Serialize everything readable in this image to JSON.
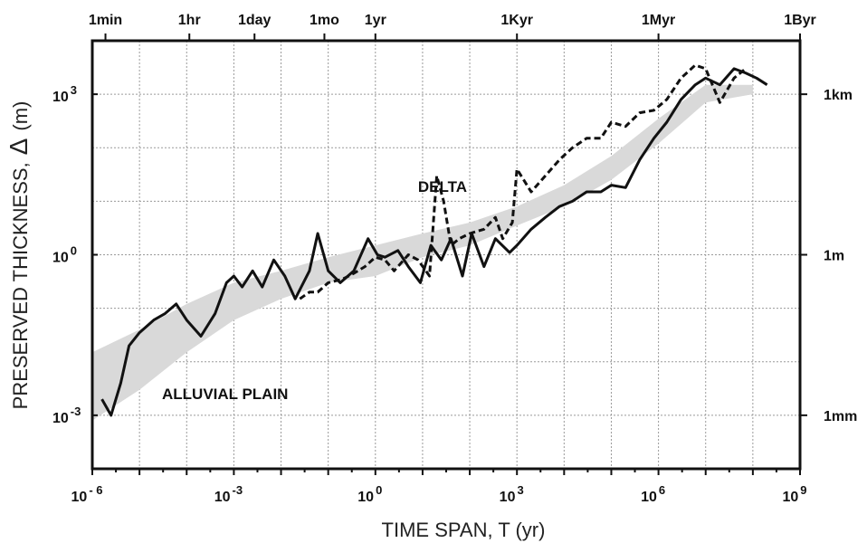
{
  "chart_data": {
    "type": "line",
    "xlabel": "TIME SPAN, T  (yr)",
    "ylabel": "PRESERVED  THICKNESS,",
    "ylabel_symbol": "Δ",
    "ylabel_unit": "(m)",
    "x_scale": "log",
    "y_scale": "log",
    "xlim": [
      1e-06,
      1000000000.0
    ],
    "ylim": [
      0.0001,
      10000.0
    ],
    "grid": true,
    "bottom_ticks": [
      {
        "value": 1e-06,
        "base": "10",
        "exp": "- 6"
      },
      {
        "value": 0.001,
        "base": "10",
        "exp": "-3"
      },
      {
        "value": 1,
        "base": "10",
        "exp": "0"
      },
      {
        "value": 1000.0,
        "base": "10",
        "exp": "3"
      },
      {
        "value": 1000000.0,
        "base": "10",
        "exp": "6"
      },
      {
        "value": 1000000000.0,
        "base": "10",
        "exp": "9"
      }
    ],
    "top_ticks": [
      {
        "value": 1.9e-06,
        "label": "1min"
      },
      {
        "value": 0.000114,
        "label": "1hr"
      },
      {
        "value": 0.00274,
        "label": "1day"
      },
      {
        "value": 0.083,
        "label": "1mo"
      },
      {
        "value": 1,
        "label": "1yr"
      },
      {
        "value": 1000.0,
        "label": "1Kyr"
      },
      {
        "value": 1000000.0,
        "label": "1Myr"
      },
      {
        "value": 1000000000.0,
        "label": "1Byr"
      }
    ],
    "left_ticks": [
      {
        "value": 0.001,
        "base": "10",
        "exp": "-3"
      },
      {
        "value": 1,
        "base": "10",
        "exp": "0"
      },
      {
        "value": 1000.0,
        "base": "10",
        "exp": "3"
      }
    ],
    "right_ticks": [
      {
        "value": 0.001,
        "label": "1mm"
      },
      {
        "value": 1,
        "label": "1m"
      },
      {
        "value": 1000.0,
        "label": "1km"
      }
    ],
    "annotations": [
      {
        "text": "ALLUVIAL  PLAIN",
        "x": 3e-05,
        "y": 0.002
      },
      {
        "text": "DELTA",
        "x": 8,
        "y": 15
      }
    ],
    "band": {
      "upper": [
        [
          1e-06,
          0.015
        ],
        [
          1e-05,
          0.04
        ],
        [
          0.0001,
          0.12
        ],
        [
          0.001,
          0.3
        ],
        [
          0.01,
          0.5
        ],
        [
          0.1,
          0.9
        ],
        [
          1,
          1.5
        ],
        [
          10,
          2.5
        ],
        [
          100,
          4
        ],
        [
          1000.0,
          8
        ],
        [
          10000.0,
          20
        ],
        [
          100000.0,
          70
        ],
        [
          1000000.0,
          350
        ],
        [
          10000000.0,
          1500
        ],
        [
          100000000.0,
          1500
        ]
      ],
      "lower": [
        [
          1e-06,
          0.0008
        ],
        [
          1e-05,
          0.003
        ],
        [
          0.0001,
          0.015
        ],
        [
          0.001,
          0.06
        ],
        [
          0.01,
          0.15
        ],
        [
          0.1,
          0.3
        ],
        [
          1,
          0.4
        ],
        [
          10,
          0.9
        ],
        [
          100,
          1.5
        ],
        [
          1000.0,
          3.5
        ],
        [
          10000.0,
          8
        ],
        [
          100000.0,
          25
        ],
        [
          1000000.0,
          120
        ],
        [
          10000000.0,
          700
        ],
        [
          100000000.0,
          1000
        ]
      ]
    },
    "series": [
      {
        "style": "solid",
        "points": [
          [
            1.6e-06,
            0.002
          ],
          [
            2.5e-06,
            0.001
          ],
          [
            4e-06,
            0.004
          ],
          [
            6e-06,
            0.02
          ],
          [
            1e-05,
            0.035
          ],
          [
            2e-05,
            0.06
          ],
          [
            3.5e-05,
            0.08
          ],
          [
            6e-05,
            0.12
          ],
          [
            0.0001,
            0.06
          ],
          [
            0.0002,
            0.03
          ],
          [
            0.0004,
            0.08
          ],
          [
            0.0007,
            0.3
          ],
          [
            0.001,
            0.4
          ],
          [
            0.0015,
            0.25
          ],
          [
            0.0025,
            0.5
          ],
          [
            0.004,
            0.25
          ],
          [
            0.007,
            0.8
          ],
          [
            0.012,
            0.4
          ],
          [
            0.02,
            0.15
          ],
          [
            0.04,
            0.5
          ],
          [
            0.06,
            2.5
          ],
          [
            0.1,
            0.5
          ],
          [
            0.18,
            0.3
          ],
          [
            0.35,
            0.5
          ],
          [
            0.7,
            2
          ],
          [
            1.1,
            1
          ],
          [
            1.6,
            0.9
          ],
          [
            3,
            1.2
          ],
          [
            5,
            0.6
          ],
          [
            9,
            0.3
          ],
          [
            15,
            1.5
          ],
          [
            25,
            0.8
          ],
          [
            40,
            2
          ],
          [
            70,
            0.4
          ],
          [
            110,
            2.5
          ],
          [
            200,
            0.6
          ],
          [
            350,
            2
          ],
          [
            700,
            1.1
          ],
          [
            1000.0,
            1.5
          ],
          [
            2000.0,
            3
          ],
          [
            4000.0,
            5
          ],
          [
            8000.0,
            8
          ],
          [
            15000.0,
            10
          ],
          [
            30000.0,
            15
          ],
          [
            60000.0,
            15
          ],
          [
            100000.0,
            20
          ],
          [
            200000.0,
            18
          ],
          [
            400000.0,
            60
          ],
          [
            800000.0,
            150
          ],
          [
            1500000.0,
            300
          ],
          [
            3000000.0,
            800
          ],
          [
            6000000.0,
            1500
          ],
          [
            10000000.0,
            2000
          ],
          [
            20000000.0,
            1500
          ],
          [
            40000000.0,
            3000
          ],
          [
            70000000.0,
            2500
          ],
          [
            120000000.0,
            2000
          ],
          [
            200000000.0,
            1500
          ]
        ]
      },
      {
        "style": "dashed",
        "points": [
          [
            0.025,
            0.15
          ],
          [
            0.04,
            0.2
          ],
          [
            0.06,
            0.2
          ],
          [
            0.1,
            0.3
          ],
          [
            0.2,
            0.35
          ],
          [
            0.35,
            0.45
          ],
          [
            0.6,
            0.6
          ],
          [
            1,
            0.9
          ],
          [
            1.6,
            0.8
          ],
          [
            2.5,
            0.5
          ],
          [
            5,
            1
          ],
          [
            8,
            0.8
          ],
          [
            14,
            0.4
          ],
          [
            20,
            30
          ],
          [
            28,
            10
          ],
          [
            40,
            1.5
          ],
          [
            60,
            2
          ],
          [
            100,
            2.5
          ],
          [
            200,
            3
          ],
          [
            350,
            5
          ],
          [
            500,
            2
          ],
          [
            800,
            4
          ],
          [
            1000.0,
            40
          ],
          [
            2000.0,
            15
          ],
          [
            4000.0,
            30
          ],
          [
            8000.0,
            60
          ],
          [
            15000.0,
            100
          ],
          [
            30000.0,
            150
          ],
          [
            60000.0,
            150
          ],
          [
            100000.0,
            300
          ],
          [
            200000.0,
            250
          ],
          [
            400000.0,
            450
          ],
          [
            800000.0,
            500
          ],
          [
            1500000.0,
            800
          ],
          [
            3000000.0,
            2000
          ],
          [
            6000000.0,
            3500
          ],
          [
            10000000.0,
            3000
          ],
          [
            20000000.0,
            700
          ],
          [
            40000000.0,
            2000
          ],
          [
            70000000.0,
            3000
          ]
        ]
      }
    ]
  }
}
